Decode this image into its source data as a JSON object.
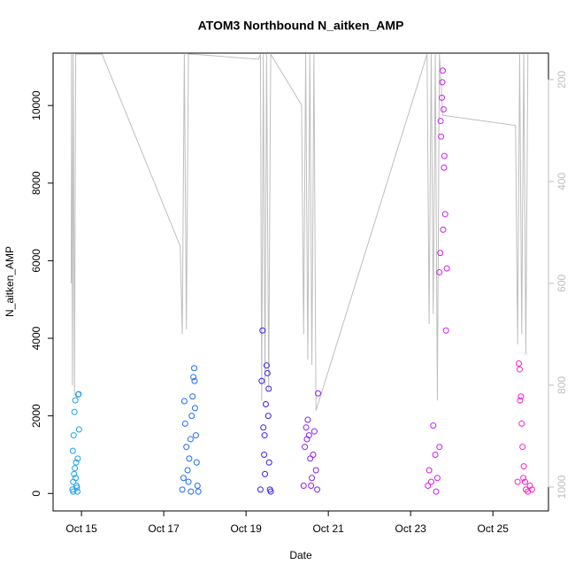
{
  "chart_data": {
    "type": "scatter",
    "title": "ATOM3 Northbound N_aitken_AMP",
    "x_label": "Date",
    "y_label": "N_aitken_AMP",
    "xlim": [
      14.31,
      26.35
    ],
    "ylim": [
      -450,
      11350
    ],
    "y2lim": [
      1047,
      148
    ],
    "xticks": [
      {
        "value": 15,
        "label": "Oct 15"
      },
      {
        "value": 17,
        "label": "Oct 17"
      },
      {
        "value": 19,
        "label": "Oct 19"
      },
      {
        "value": 21,
        "label": "Oct 21"
      },
      {
        "value": 23,
        "label": "Oct 23"
      },
      {
        "value": 25,
        "label": "Oct 25"
      }
    ],
    "yticks": [
      0,
      2000,
      4000,
      6000,
      8000,
      10000
    ],
    "y2ticks": [
      200,
      400,
      600,
      800,
      1000
    ],
    "series": [
      {
        "color": "#bebebe",
        "axis": "y2",
        "mode": "lines",
        "x": [
          14.75,
          14.76,
          14.78,
          14.8,
          14.83,
          14.86,
          15.5,
          17.4,
          17.45,
          17.5,
          17.55,
          17.6,
          17.7,
          19.3,
          19.35,
          19.38,
          19.42,
          19.46,
          19.5,
          19.55,
          19.6,
          20.35,
          20.4,
          20.45,
          20.5,
          20.55,
          20.6,
          20.65,
          20.7,
          23.4,
          23.45,
          23.5,
          23.55,
          23.6,
          23.65,
          23.7,
          23.78,
          25.55,
          25.6,
          25.65,
          25.7,
          25.75,
          25.8,
          25.85
        ],
        "values": [
          600,
          150,
          800,
          150,
          820,
          150,
          150,
          527,
          700,
          150,
          690,
          150,
          150,
          160,
          150,
          830,
          150,
          800,
          150,
          810,
          150,
          250,
          700,
          150,
          750,
          150,
          760,
          150,
          850,
          150,
          680,
          150,
          660,
          150,
          830,
          150,
          270,
          290,
          720,
          150,
          700,
          150,
          740,
          150
        ]
      },
      {
        "color": "#1ca0f0",
        "mode": "points",
        "x": [
          14.78,
          14.8,
          14.82,
          14.79,
          14.81,
          14.83,
          14.85,
          14.87,
          14.88,
          14.9,
          14.92,
          14.93,
          14.94,
          14.84,
          14.86,
          14.89,
          14.91,
          14.8
        ],
        "values": [
          100,
          300,
          500,
          1100,
          1500,
          2100,
          2400,
          800,
          200,
          50,
          2550,
          2560,
          1650,
          650,
          400,
          150,
          900,
          50
        ]
      },
      {
        "color": "#1e6cf5",
        "mode": "points",
        "x": [
          17.45,
          17.5,
          17.52,
          17.55,
          17.58,
          17.6,
          17.62,
          17.65,
          17.68,
          17.7,
          17.72,
          17.74,
          17.76,
          17.78,
          17.8,
          17.82,
          17.84,
          17.48,
          17.66,
          17.75
        ],
        "values": [
          100,
          2380,
          1800,
          1200,
          600,
          300,
          900,
          1400,
          2000,
          2500,
          3000,
          3230,
          2200,
          1500,
          800,
          200,
          50,
          400,
          50,
          2900
        ]
      },
      {
        "color": "#3a1ff0",
        "mode": "points",
        "x": [
          19.35,
          19.38,
          19.4,
          19.42,
          19.44,
          19.46,
          19.48,
          19.5,
          19.52,
          19.54,
          19.56,
          19.58,
          19.6,
          19.45,
          19.55
        ],
        "values": [
          100,
          2900,
          4200,
          1700,
          1000,
          500,
          2300,
          3300,
          3100,
          2000,
          800,
          100,
          50,
          1500,
          2700
        ]
      },
      {
        "color": "#8a1ff0",
        "mode": "points",
        "x": [
          20.4,
          20.43,
          20.46,
          20.5,
          20.53,
          20.56,
          20.6,
          20.63,
          20.66,
          20.7,
          20.73,
          20.75,
          20.48,
          20.58
        ],
        "values": [
          200,
          1200,
          1700,
          1900,
          1500,
          900,
          400,
          1000,
          1600,
          600,
          100,
          2580,
          1400,
          200
        ]
      },
      {
        "color": "#cc1ff0",
        "mode": "points",
        "x": [
          23.42,
          23.45,
          23.5,
          23.55,
          23.6,
          23.65,
          23.7,
          23.72,
          23.74,
          23.76,
          23.78,
          23.8,
          23.82,
          23.84,
          23.86,
          23.88,
          23.73,
          23.77,
          23.81,
          23.79,
          23.7,
          23.62
        ],
        "values": [
          200,
          600,
          300,
          1750,
          1000,
          400,
          5700,
          6200,
          9200,
          10200,
          10900,
          9900,
          8700,
          7200,
          4200,
          5800,
          9600,
          10600,
          8400,
          6800,
          1200,
          50
        ]
      },
      {
        "color": "#ff1fc8",
        "mode": "points",
        "x": [
          25.6,
          25.63,
          25.65,
          25.68,
          25.7,
          25.72,
          25.75,
          25.78,
          25.8,
          25.85,
          25.9,
          25.95,
          25.66,
          25.74
        ],
        "values": [
          300,
          3350,
          3200,
          2500,
          1800,
          1200,
          700,
          300,
          100,
          50,
          200,
          100,
          2400,
          400
        ]
      }
    ]
  }
}
